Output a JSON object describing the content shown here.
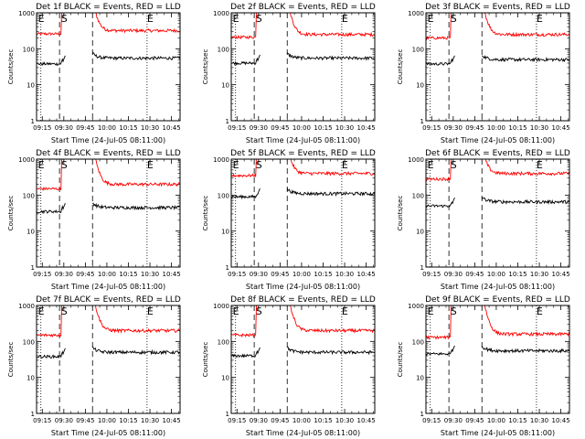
{
  "chart_data": {
    "type": "line",
    "xlabel": "Start Time (24-Jul-05 08:11:00)",
    "ylabel": "Counts/sec",
    "x_ticks": [
      "09:15",
      "09:30",
      "09:45",
      "10:00",
      "10:15",
      "10:30",
      "10:45"
    ],
    "x_tick_minutes": [
      64,
      79,
      94,
      109,
      124,
      139,
      154
    ],
    "xlim_minutes": [
      60,
      160
    ],
    "y_scale": "log",
    "ylim": [
      1,
      1000
    ],
    "y_ticks": [
      "1",
      "10",
      "100",
      "1000"
    ],
    "y_tick_values": [
      1,
      10,
      100,
      1000
    ],
    "colors": {
      "events": "#000000",
      "lld": "#ff0000"
    },
    "markers": {
      "labels": [
        "E",
        "S",
        "E"
      ],
      "dotted_minutes": [
        63,
        137
      ],
      "dashed_minutes": [
        76,
        99
      ]
    },
    "gap_minutes": [
      80,
      99
    ],
    "panels": [
      {
        "title": "Det 1f BLACK = Events, RED = LLD",
        "lld_pre": 260,
        "lld_post": 320,
        "events_pre": 38,
        "events_post": 55
      },
      {
        "title": "Det 2f BLACK = Events, RED = LLD",
        "lld_pre": 210,
        "lld_post": 250,
        "events_pre": 40,
        "events_post": 55
      },
      {
        "title": "Det 3f BLACK = Events, RED = LLD",
        "lld_pre": 200,
        "lld_post": 250,
        "events_pre": 38,
        "events_post": 50
      },
      {
        "title": "Det 4f BLACK = Events, RED = LLD",
        "lld_pre": 150,
        "lld_post": 200,
        "events_pre": 35,
        "events_post": 45
      },
      {
        "title": "Det 5f BLACK = Events, RED = LLD",
        "lld_pre": 350,
        "lld_post": 400,
        "events_pre": 90,
        "events_post": 110
      },
      {
        "title": "Det 6f BLACK = Events, RED = LLD",
        "lld_pre": 280,
        "lld_post": 400,
        "events_pre": 50,
        "events_post": 65
      },
      {
        "title": "Det 7f BLACK = Events, RED = LLD",
        "lld_pre": 150,
        "lld_post": 200,
        "events_pre": 38,
        "events_post": 50
      },
      {
        "title": "Det 8f BLACK = Events, RED = LLD",
        "lld_pre": 150,
        "lld_post": 200,
        "events_pre": 40,
        "events_post": 50
      },
      {
        "title": "Det 9f BLACK = Events, RED = LLD",
        "lld_pre": 130,
        "lld_post": 160,
        "events_pre": 45,
        "events_post": 55
      }
    ]
  }
}
